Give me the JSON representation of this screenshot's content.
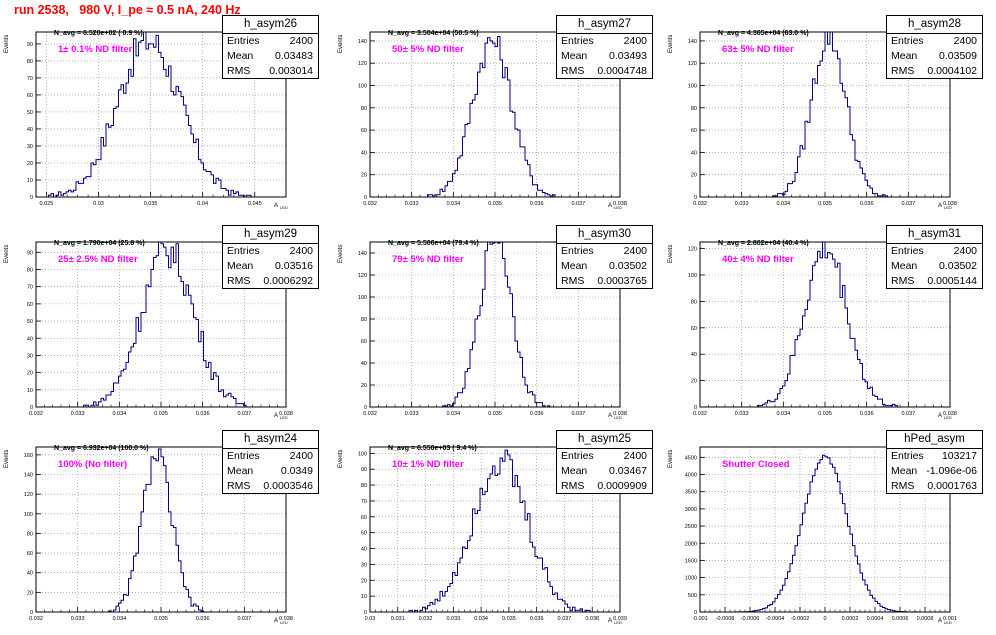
{
  "run_title": "run 2538,   980 V, I_pe ≈ 0.5 nA, 240 Hz",
  "stats_labels": {
    "entries": "Entries",
    "mean": "Mean",
    "rms": "RMS"
  },
  "axis_labels": {
    "y": "Events",
    "x": "A",
    "x_sub": "LED"
  },
  "panels": [
    {
      "name": "h_asym26",
      "navg": "N_avg = 6.520e+02 ( 0.9 %)",
      "filter": "1± 0.1% ND filter",
      "entries": "2400",
      "mean": "0.03483",
      "rms": "0.003014"
    },
    {
      "name": "h_asym27",
      "navg": "N_avg = 3.504e+04 (50.5 %)",
      "filter": "50± 5% ND filter",
      "entries": "2400",
      "mean": "0.03493",
      "rms": "0.0004748"
    },
    {
      "name": "h_asym28",
      "navg": "N_avg = 4.365e+04 (63.0 %)",
      "filter": "63± 5% ND filter",
      "entries": "2400",
      "mean": "0.03509",
      "rms": "0.0004102"
    },
    {
      "name": "h_asym29",
      "navg": "N_avg = 1.790e+04 (25.8 %)",
      "filter": "25± 2.5% ND filter",
      "entries": "2400",
      "mean": "0.03516",
      "rms": "0.0006292"
    },
    {
      "name": "h_asym30",
      "navg": "N_avg = 5.506e+04 (79.4 %)",
      "filter": "79± 5% ND filter",
      "entries": "2400",
      "mean": "0.03502",
      "rms": "0.0003765"
    },
    {
      "name": "h_asym31",
      "navg": "N_avg = 2.802e+04 (40.4 %)",
      "filter": "40± 4% ND filter",
      "entries": "2400",
      "mean": "0.03502",
      "rms": "0.0005144"
    },
    {
      "name": "h_asym24",
      "navg": "N_avg = 6.932e+04 (100.0 %)",
      "filter": "100% (No filter)",
      "entries": "2400",
      "mean": "0.0349",
      "rms": "0.0003546"
    },
    {
      "name": "h_asym25",
      "navg": "N_avg = 6.550e+03 ( 9.4 %)",
      "filter": "10± 1% ND filter",
      "entries": "2400",
      "mean": "0.03467",
      "rms": "0.0009909"
    },
    {
      "name": "hPed_asym",
      "navg": "",
      "filter": "Shutter Closed",
      "entries": "103217",
      "mean": "-1.096e-06",
      "rms": "0.0001763"
    }
  ],
  "chart_data": [
    {
      "type": "bar",
      "title": "h_asym26",
      "ylabel": "Events",
      "x_ticks": [
        "0.025",
        "0.03",
        "0.035",
        "0.04",
        "0.045"
      ],
      "xlim": [
        0.024,
        0.048
      ],
      "y_ticks": [
        "0",
        "10",
        "20",
        "30",
        "40",
        "50",
        "60",
        "70",
        "80",
        "90"
      ],
      "ylim": [
        0,
        97
      ],
      "mean": 0.03483,
      "rms": 0.003014,
      "peak": 92,
      "nbins": 100,
      "color": "#000080"
    },
    {
      "type": "bar",
      "title": "h_asym27",
      "ylabel": "Events",
      "x_ticks": [
        "0.032",
        "0.033",
        "0.034",
        "0.035",
        "0.036",
        "0.037",
        "0.038"
      ],
      "xlim": [
        0.032,
        0.038
      ],
      "y_ticks": [
        "0",
        "20",
        "40",
        "60",
        "80",
        "100",
        "120",
        "140"
      ],
      "ylim": [
        0,
        148
      ],
      "mean": 0.03493,
      "rms": 0.0004748,
      "peak": 140,
      "nbins": 100,
      "color": "#000080"
    },
    {
      "type": "bar",
      "title": "h_asym28",
      "ylabel": "Events",
      "x_ticks": [
        "0.032",
        "0.033",
        "0.034",
        "0.035",
        "0.036",
        "0.037",
        "0.038"
      ],
      "xlim": [
        0.032,
        0.038
      ],
      "y_ticks": [
        "0",
        "20",
        "40",
        "60",
        "80",
        "100",
        "120",
        "140"
      ],
      "ylim": [
        0,
        148
      ],
      "mean": 0.03509,
      "rms": 0.0004102,
      "peak": 145,
      "nbins": 100,
      "color": "#000080"
    },
    {
      "type": "bar",
      "title": "h_asym29",
      "ylabel": "Events",
      "x_ticks": [
        "0.032",
        "0.033",
        "0.034",
        "0.035",
        "0.036",
        "0.037",
        "0.038"
      ],
      "xlim": [
        0.032,
        0.038
      ],
      "y_ticks": [
        "0",
        "10",
        "20",
        "30",
        "40",
        "50",
        "60",
        "70",
        "80",
        "90"
      ],
      "ylim": [
        0,
        96
      ],
      "mean": 0.03516,
      "rms": 0.0006292,
      "peak": 91,
      "nbins": 100,
      "color": "#000080"
    },
    {
      "type": "bar",
      "title": "h_asym30",
      "ylabel": "Events",
      "x_ticks": [
        "0.032",
        "0.033",
        "0.034",
        "0.035",
        "0.036",
        "0.037",
        "0.038"
      ],
      "xlim": [
        0.032,
        0.038
      ],
      "y_ticks": [
        "0",
        "20",
        "40",
        "60",
        "80",
        "100",
        "120",
        "140"
      ],
      "ylim": [
        0,
        150
      ],
      "mean": 0.03502,
      "rms": 0.0003765,
      "peak": 158,
      "nbins": 100,
      "color": "#000080"
    },
    {
      "type": "bar",
      "title": "h_asym31",
      "ylabel": "Events",
      "x_ticks": [
        "0.032",
        "0.033",
        "0.034",
        "0.035",
        "0.036",
        "0.037",
        "0.038"
      ],
      "xlim": [
        0.032,
        0.038
      ],
      "y_ticks": [
        "0",
        "20",
        "40",
        "60",
        "80",
        "100",
        "120"
      ],
      "ylim": [
        0,
        125
      ],
      "mean": 0.03502,
      "rms": 0.0005144,
      "peak": 120,
      "nbins": 100,
      "color": "#000080"
    },
    {
      "type": "bar",
      "title": "h_asym24",
      "ylabel": "Events",
      "x_ticks": [
        "0.032",
        "0.033",
        "0.034",
        "0.035",
        "0.036",
        "0.037",
        "0.038"
      ],
      "xlim": [
        0.032,
        0.038
      ],
      "y_ticks": [
        "0",
        "20",
        "40",
        "60",
        "80",
        "100",
        "120",
        "140",
        "160"
      ],
      "ylim": [
        0,
        168
      ],
      "mean": 0.0349,
      "rms": 0.0003546,
      "peak": 160,
      "nbins": 100,
      "color": "#000080"
    },
    {
      "type": "bar",
      "title": "h_asym25",
      "ylabel": "Events",
      "x_ticks": [
        "0.03",
        "0.031",
        "0.032",
        "0.033",
        "0.034",
        "0.035",
        "0.036",
        "0.037",
        "0.038",
        "0.039"
      ],
      "xlim": [
        0.03,
        0.039
      ],
      "y_ticks": [
        "0",
        "10",
        "20",
        "30",
        "40",
        "50",
        "60",
        "70",
        "80",
        "90",
        "100"
      ],
      "ylim": [
        0,
        104
      ],
      "mean": 0.03467,
      "rms": 0.0009909,
      "peak": 96,
      "nbins": 100,
      "color": "#000080"
    },
    {
      "type": "bar",
      "title": "hPed_asym",
      "ylabel": "Events",
      "x_ticks": [
        "-0.001",
        "-0.0008",
        "-0.0006",
        "-0.0004",
        "-0.0002",
        "0",
        "0.0002",
        "0.0004",
        "0.0006",
        "0.0008",
        "0.001"
      ],
      "xlim": [
        -0.001,
        0.001
      ],
      "y_ticks": [
        "0",
        "500",
        "1000",
        "1500",
        "2000",
        "2500",
        "3000",
        "3500",
        "4000",
        "4500"
      ],
      "ylim": [
        0,
        4800
      ],
      "mean": -1.096e-06,
      "rms": 0.0001763,
      "peak": 4550,
      "nbins": 100,
      "color": "#000080"
    }
  ]
}
